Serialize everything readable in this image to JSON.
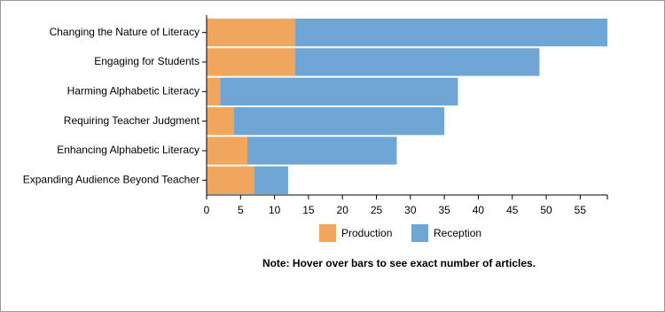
{
  "chart_data": {
    "type": "stacked_bar_horizontal",
    "categories": [
      "Changing the Nature of Literacy",
      "Engaging for Students",
      "Harming Alphabetic Literacy",
      "Requiring Teacher Judgment",
      "Enhancing Alphabetic Literacy",
      "Expanding Audience Beyond Teacher"
    ],
    "series": [
      {
        "name": "Production",
        "color": "#f0a65c",
        "values": [
          13,
          13,
          2,
          4,
          6,
          7
        ]
      },
      {
        "name": "Reception",
        "color": "#6fa6d6",
        "values": [
          46,
          36,
          35,
          31,
          22,
          5
        ]
      }
    ],
    "xlim": [
      0,
      59
    ],
    "xticks": [
      0,
      5,
      10,
      15,
      20,
      25,
      30,
      35,
      40,
      45,
      50,
      55
    ],
    "note": "Note: Hover over bars to see exact number of articles."
  }
}
